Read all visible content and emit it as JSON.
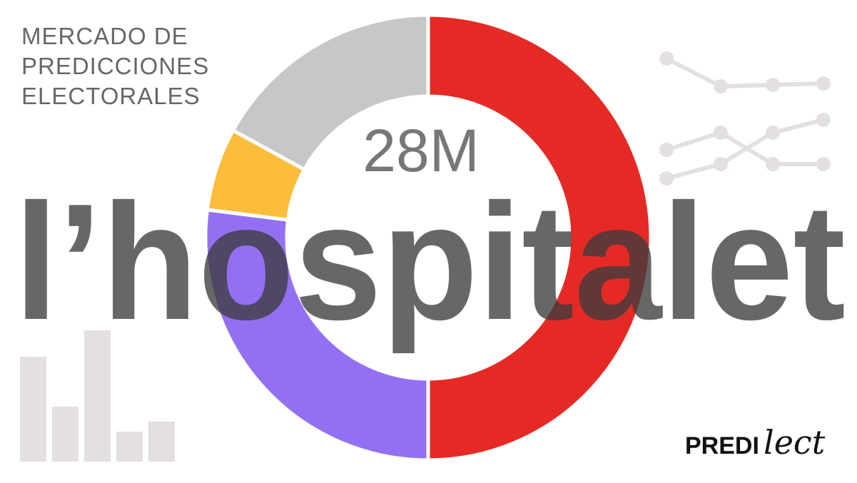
{
  "chart_data": {
    "type": "donut",
    "subtitle_lines": [
      "MERCADO DE",
      "PREDICCIONES",
      "ELECTORALES"
    ],
    "center_label": "28M",
    "title": "l’hospitalet",
    "values": [
      50,
      27,
      6,
      17
    ],
    "colors": [
      "#e52a25",
      "#9370f3",
      "#fcbd3c",
      "#c6c7c7"
    ]
  },
  "logo": {
    "bold": "PREDI",
    "script": "lect"
  }
}
